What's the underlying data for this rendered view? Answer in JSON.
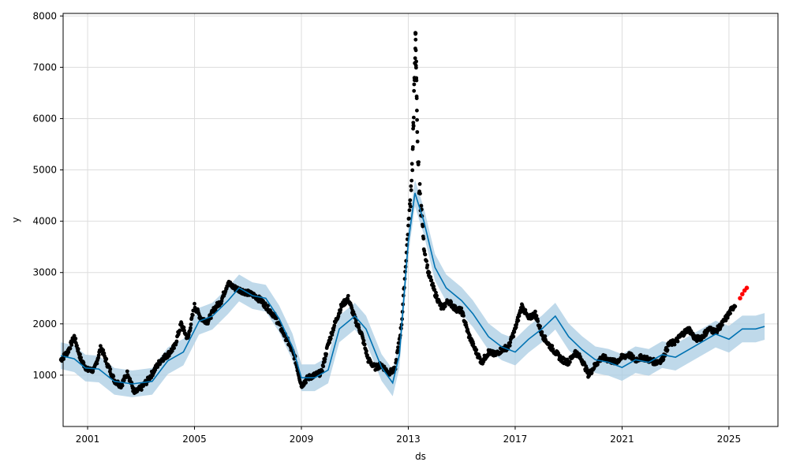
{
  "chart_data": {
    "type": "line",
    "xlabel": "ds",
    "ylabel": "y",
    "x_ticks": [
      "2001",
      "2005",
      "2009",
      "2013",
      "2017",
      "2021",
      "2025"
    ],
    "y_ticks": [
      "1000",
      "2000",
      "3000",
      "4000",
      "5000",
      "6000",
      "7000",
      "8000"
    ],
    "xlim": [
      "2000-02-01",
      "2026-11-01"
    ],
    "ylim": [
      0,
      8050
    ],
    "grid": true,
    "colors": {
      "observed": "#000000",
      "forecast": "#0072B2",
      "interval": "#A9CCE3",
      "highlighted": "#FF0000",
      "grid": "#DDDDDD"
    },
    "series": [
      {
        "role": "forecast",
        "points": [
          [
            "2000-01-01",
            1380
          ],
          [
            "2000-07-01",
            1320
          ],
          [
            "2000-12-01",
            1140
          ],
          [
            "2001-06-01",
            1120
          ],
          [
            "2002-01-01",
            880
          ],
          [
            "2002-09-01",
            830
          ],
          [
            "2003-06-01",
            880
          ],
          [
            "2004-01-01",
            1280
          ],
          [
            "2004-08-01",
            1450
          ],
          [
            "2005-03-01",
            2050
          ],
          [
            "2005-09-01",
            2150
          ],
          [
            "2006-04-01",
            2450
          ],
          [
            "2006-09-01",
            2700
          ],
          [
            "2007-03-01",
            2550
          ],
          [
            "2007-09-01",
            2500
          ],
          [
            "2008-03-01",
            2100
          ],
          [
            "2008-09-01",
            1550
          ],
          [
            "2009-01-01",
            950
          ],
          [
            "2009-07-01",
            950
          ],
          [
            "2010-01-01",
            1100
          ],
          [
            "2010-06-01",
            1900
          ],
          [
            "2011-01-01",
            2150
          ],
          [
            "2011-06-01",
            1900
          ],
          [
            "2012-01-01",
            1150
          ],
          [
            "2012-06-01",
            850
          ],
          [
            "2012-09-01",
            1400
          ],
          [
            "2013-01-01",
            3600
          ],
          [
            "2013-04-01",
            4550
          ],
          [
            "2013-08-01",
            4000
          ],
          [
            "2014-01-01",
            3100
          ],
          [
            "2014-06-01",
            2700
          ],
          [
            "2015-01-01",
            2450
          ],
          [
            "2015-06-01",
            2200
          ],
          [
            "2016-01-01",
            1750
          ],
          [
            "2016-07-01",
            1550
          ],
          [
            "2017-01-01",
            1450
          ],
          [
            "2017-07-01",
            1700
          ],
          [
            "2018-01-01",
            1900
          ],
          [
            "2018-07-01",
            2150
          ],
          [
            "2019-01-01",
            1750
          ],
          [
            "2019-07-01",
            1500
          ],
          [
            "2020-01-01",
            1300
          ],
          [
            "2020-07-01",
            1250
          ],
          [
            "2021-01-01",
            1150
          ],
          [
            "2021-07-01",
            1300
          ],
          [
            "2022-01-01",
            1250
          ],
          [
            "2022-07-01",
            1400
          ],
          [
            "2023-01-01",
            1350
          ],
          [
            "2023-07-01",
            1500
          ],
          [
            "2024-01-01",
            1650
          ],
          [
            "2024-07-01",
            1800
          ],
          [
            "2025-01-01",
            1700
          ],
          [
            "2025-07-01",
            1900
          ],
          [
            "2026-01-01",
            1900
          ],
          [
            "2026-05-01",
            1950
          ]
        ]
      },
      {
        "role": "observed",
        "points": [
          [
            "2000-01-01",
            1300
          ],
          [
            "2000-04-01",
            1450
          ],
          [
            "2000-07-01",
            1750
          ],
          [
            "2000-10-01",
            1300
          ],
          [
            "2001-01-01",
            1100
          ],
          [
            "2001-04-01",
            1100
          ],
          [
            "2001-07-01",
            1550
          ],
          [
            "2001-10-01",
            1200
          ],
          [
            "2002-01-01",
            900
          ],
          [
            "2002-04-01",
            800
          ],
          [
            "2002-07-01",
            1050
          ],
          [
            "2002-10-01",
            650
          ],
          [
            "2003-01-01",
            750
          ],
          [
            "2003-04-01",
            900
          ],
          [
            "2003-07-01",
            1100
          ],
          [
            "2003-10-01",
            1300
          ],
          [
            "2004-01-01",
            1400
          ],
          [
            "2004-04-01",
            1550
          ],
          [
            "2004-07-01",
            2000
          ],
          [
            "2004-10-01",
            1700
          ],
          [
            "2005-01-01",
            2350
          ],
          [
            "2005-04-01",
            2100
          ],
          [
            "2005-07-01",
            2050
          ],
          [
            "2005-10-01",
            2300
          ],
          [
            "2006-01-01",
            2450
          ],
          [
            "2006-04-01",
            2800
          ],
          [
            "2006-07-01",
            2700
          ],
          [
            "2006-10-01",
            2650
          ],
          [
            "2007-01-01",
            2600
          ],
          [
            "2007-04-01",
            2550
          ],
          [
            "2007-07-01",
            2450
          ],
          [
            "2007-10-01",
            2300
          ],
          [
            "2008-01-01",
            2150
          ],
          [
            "2008-04-01",
            1900
          ],
          [
            "2008-07-01",
            1650
          ],
          [
            "2008-10-01",
            1350
          ],
          [
            "2009-01-01",
            800
          ],
          [
            "2009-04-01",
            950
          ],
          [
            "2009-07-01",
            1000
          ],
          [
            "2009-10-01",
            1050
          ],
          [
            "2010-01-01",
            1600
          ],
          [
            "2010-04-01",
            2000
          ],
          [
            "2010-07-01",
            2350
          ],
          [
            "2010-10-01",
            2500
          ],
          [
            "2011-01-01",
            2100
          ],
          [
            "2011-04-01",
            1800
          ],
          [
            "2011-07-01",
            1300
          ],
          [
            "2011-10-01",
            1150
          ],
          [
            "2012-01-01",
            1200
          ],
          [
            "2012-04-01",
            1050
          ],
          [
            "2012-07-01",
            1100
          ],
          [
            "2012-10-01",
            2000
          ],
          [
            "2013-01-01",
            3900
          ],
          [
            "2013-02-01",
            4500
          ],
          [
            "2013-03-01",
            5300
          ],
          [
            "2013-03-15",
            6200
          ],
          [
            "2013-04-01",
            7100
          ],
          [
            "2013-04-10",
            7700
          ],
          [
            "2013-04-20",
            6800
          ],
          [
            "2013-05-01",
            5600
          ],
          [
            "2013-06-01",
            4600
          ],
          [
            "2013-07-01",
            4200
          ],
          [
            "2013-08-01",
            3500
          ],
          [
            "2013-10-01",
            3000
          ],
          [
            "2014-01-01",
            2600
          ],
          [
            "2014-04-01",
            2300
          ],
          [
            "2014-07-01",
            2450
          ],
          [
            "2014-10-01",
            2300
          ],
          [
            "2015-01-01",
            2250
          ],
          [
            "2015-04-01",
            1800
          ],
          [
            "2015-07-01",
            1500
          ],
          [
            "2015-10-01",
            1250
          ],
          [
            "2016-01-01",
            1450
          ],
          [
            "2016-04-01",
            1400
          ],
          [
            "2016-07-01",
            1500
          ],
          [
            "2016-10-01",
            1550
          ],
          [
            "2017-01-01",
            1900
          ],
          [
            "2017-04-01",
            2350
          ],
          [
            "2017-07-01",
            2100
          ],
          [
            "2017-10-01",
            2200
          ],
          [
            "2018-01-01",
            1800
          ],
          [
            "2018-04-01",
            1600
          ],
          [
            "2018-07-01",
            1450
          ],
          [
            "2018-10-01",
            1300
          ],
          [
            "2019-01-01",
            1250
          ],
          [
            "2019-04-01",
            1450
          ],
          [
            "2019-07-01",
            1300
          ],
          [
            "2019-10-01",
            1000
          ],
          [
            "2020-01-01",
            1200
          ],
          [
            "2020-04-01",
            1350
          ],
          [
            "2020-07-01",
            1300
          ],
          [
            "2020-10-01",
            1250
          ],
          [
            "2021-01-01",
            1350
          ],
          [
            "2021-04-01",
            1400
          ],
          [
            "2021-07-01",
            1300
          ],
          [
            "2021-10-01",
            1350
          ],
          [
            "2022-01-01",
            1300
          ],
          [
            "2022-04-01",
            1250
          ],
          [
            "2022-07-01",
            1300
          ],
          [
            "2022-10-01",
            1600
          ],
          [
            "2023-01-01",
            1650
          ],
          [
            "2023-04-01",
            1800
          ],
          [
            "2023-07-01",
            1900
          ],
          [
            "2023-10-01",
            1700
          ],
          [
            "2024-01-01",
            1750
          ],
          [
            "2024-04-01",
            1900
          ],
          [
            "2024-07-01",
            1850
          ],
          [
            "2024-10-01",
            2000
          ],
          [
            "2025-01-01",
            2200
          ],
          [
            "2025-04-01",
            2400
          ]
        ]
      },
      {
        "role": "highlighted",
        "points": [
          [
            "2025-06-01",
            2500
          ],
          [
            "2025-07-01",
            2580
          ],
          [
            "2025-08-01",
            2650
          ],
          [
            "2025-09-01",
            2700
          ]
        ]
      }
    ]
  }
}
